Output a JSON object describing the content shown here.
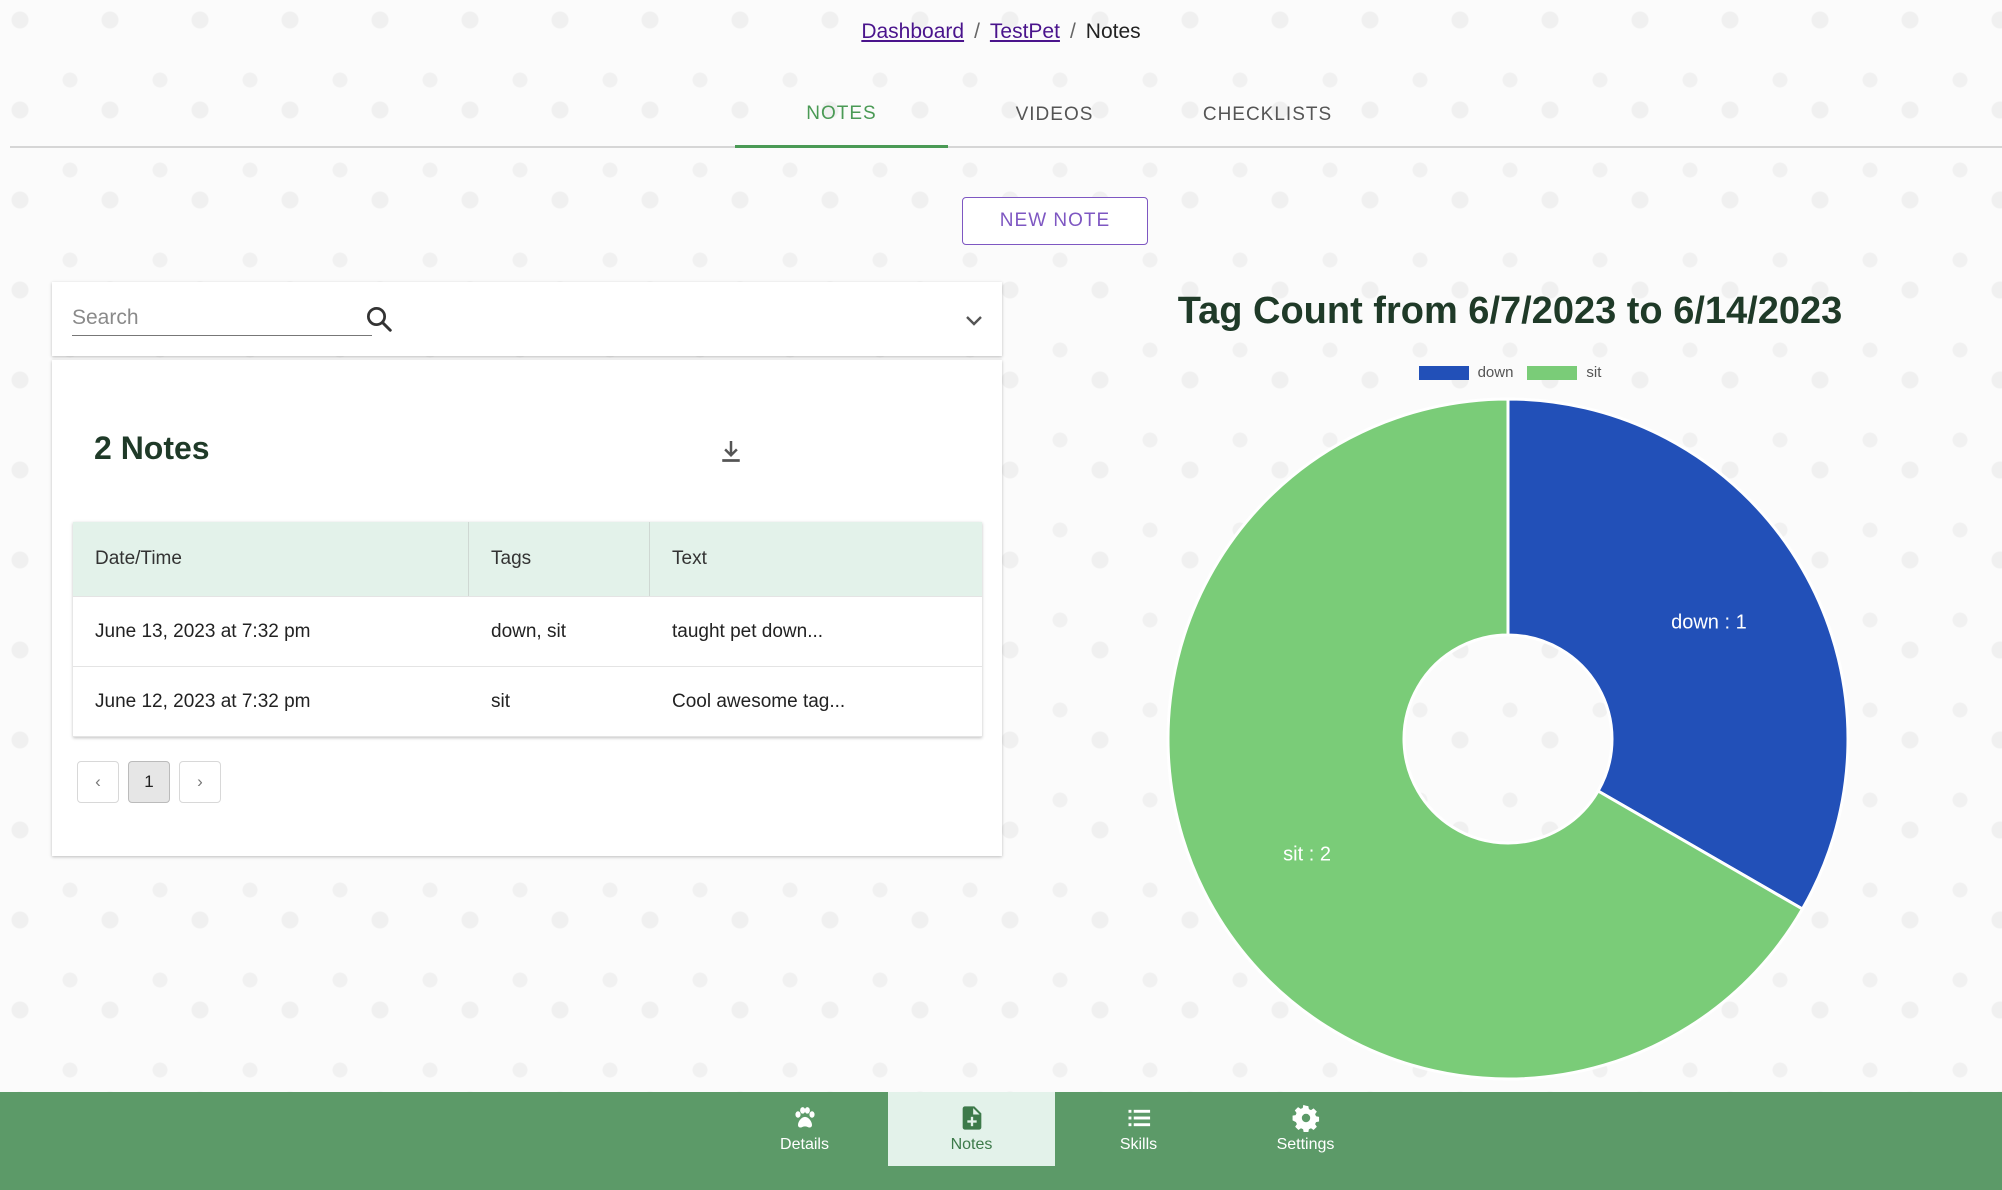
{
  "breadcrumb": {
    "items": [
      "Dashboard",
      "TestPet"
    ],
    "current": "Notes",
    "separator": "/"
  },
  "tabs": [
    {
      "label": "NOTES",
      "active": true
    },
    {
      "label": "VIDEOS",
      "active": false
    },
    {
      "label": "CHECKLISTS",
      "active": false
    }
  ],
  "actions": {
    "new_note_label": "NEW NOTE"
  },
  "search": {
    "placeholder": "Search",
    "value": ""
  },
  "notes": {
    "title": "2 Notes",
    "columns": [
      "Date/Time",
      "Tags",
      "Text"
    ],
    "rows": [
      [
        "June 13, 2023 at 7:32 pm",
        "down, sit",
        "taught pet down..."
      ],
      [
        "June 12, 2023 at 7:32 pm",
        "sit",
        "Cool awesome tag..."
      ]
    ],
    "pagination": {
      "prev": "‹",
      "current": "1",
      "next": "›"
    }
  },
  "chart_data": {
    "type": "pie",
    "title": "Tag Count from 6/7/2023 to 6/14/2023",
    "legend_position": "top",
    "categories": [
      "down",
      "sit"
    ],
    "values": [
      1,
      2
    ],
    "colors": [
      "#2250b8",
      "#7acc78"
    ],
    "donut": true,
    "slice_labels": [
      "down :  1",
      "sit :  2"
    ]
  },
  "bottom_nav": [
    {
      "label": "Details",
      "icon": "paw-icon",
      "active": false
    },
    {
      "label": "Notes",
      "icon": "note-add-icon",
      "active": true
    },
    {
      "label": "Skills",
      "icon": "list-icon",
      "active": false
    },
    {
      "label": "Settings",
      "icon": "gear-icon",
      "active": false
    }
  ],
  "colors": {
    "accent": "#4a9a55",
    "nav_bg": "#5c9a68",
    "button": "#7e57c2",
    "table_header": "#e3f2ea"
  }
}
